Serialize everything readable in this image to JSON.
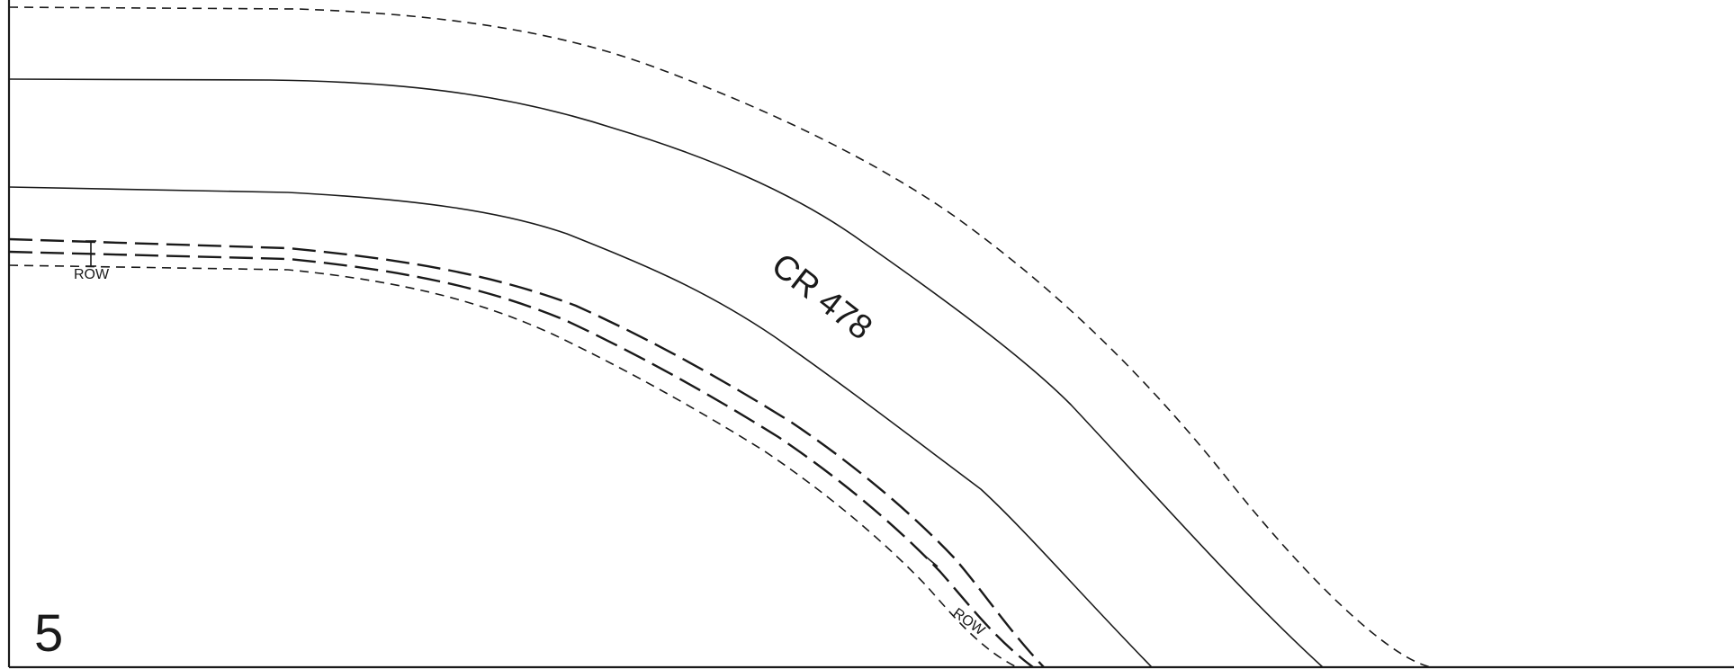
{
  "road": {
    "name": "CR 478"
  },
  "labels": {
    "row_west": "ROW",
    "row_south": "ROW"
  },
  "sheet": {
    "number": "5"
  }
}
